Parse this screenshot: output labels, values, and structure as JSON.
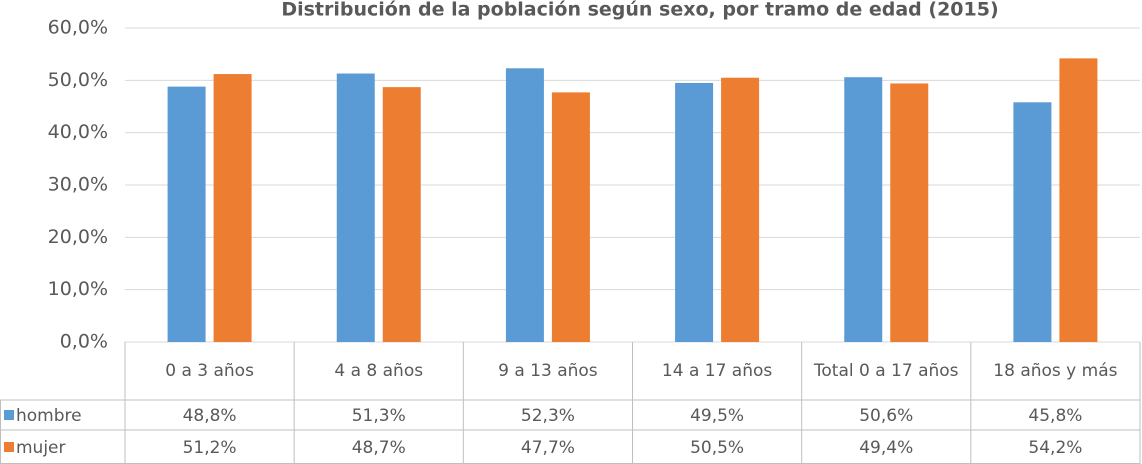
{
  "chart_data": {
    "type": "bar",
    "title": "Distribución de la población según sexo, por tramo de edad (2015)",
    "categories": [
      "0 a 3 años",
      "4 a 8 años",
      "9 a 13 años",
      "14 a 17 años",
      "Total 0 a 17 años",
      "18 años y más"
    ],
    "series": [
      {
        "name": "hombre",
        "color": "#5b9bd5",
        "values": [
          48.8,
          51.3,
          52.3,
          49.5,
          50.6,
          45.8
        ],
        "value_labels": [
          "48,8%",
          "51,3%",
          "52,3%",
          "49,5%",
          "50,6%",
          "45,8%"
        ]
      },
      {
        "name": "mujer",
        "color": "#ed7d31",
        "values": [
          51.2,
          48.7,
          47.7,
          50.5,
          49.4,
          54.2
        ],
        "value_labels": [
          "51,2%",
          "48,7%",
          "47,7%",
          "50,5%",
          "49,4%",
          "54,2%"
        ]
      }
    ],
    "ylim": [
      0,
      60
    ],
    "yticks": [
      {
        "value": 0,
        "label": "0,0%"
      },
      {
        "value": 10,
        "label": "10,0%"
      },
      {
        "value": 20,
        "label": "20,0%"
      },
      {
        "value": 30,
        "label": "30,0%"
      },
      {
        "value": 40,
        "label": "40,0%"
      },
      {
        "value": 50,
        "label": "50,0%"
      },
      {
        "value": 60,
        "label": "60,0%"
      }
    ],
    "grid": true
  }
}
